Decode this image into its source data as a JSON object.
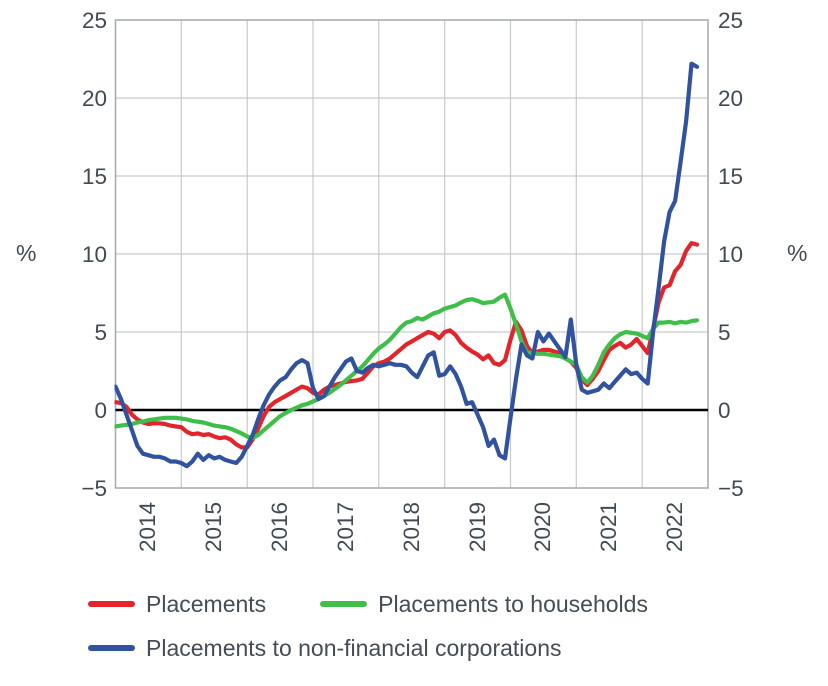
{
  "figure": {
    "unit_label_left": "%",
    "unit_label_right": "%"
  },
  "chart_data": {
    "type": "line",
    "title": "",
    "xlabel": "",
    "ylabel_left": "%",
    "ylabel_right": "%",
    "ylim": [
      -5,
      25
    ],
    "y_ticks": [
      25,
      20,
      15,
      10,
      5,
      0,
      -5
    ],
    "y_tick_labels": [
      "25",
      "20",
      "15",
      "10",
      "5",
      "0",
      "−5"
    ],
    "x_tick_labels": [
      "2014",
      "2015",
      "2016",
      "2017",
      "2018",
      "2019",
      "2020",
      "2021",
      "2022"
    ],
    "x_start": "2014-01",
    "x_end": "2022-11",
    "frequency": "monthly",
    "grid": true,
    "zero_line": true,
    "legend_position": "bottom",
    "axis_text_color": "#414a52",
    "gridline_color": "#c6c9cc",
    "series": [
      {
        "name": "Placements",
        "color": "#e3242b",
        "values": [
          0.5,
          0.45,
          0.2,
          -0.3,
          -0.6,
          -0.8,
          -0.9,
          -0.85,
          -0.85,
          -0.9,
          -1.0,
          -1.05,
          -1.1,
          -1.4,
          -1.55,
          -1.5,
          -1.6,
          -1.55,
          -1.7,
          -1.8,
          -1.75,
          -1.9,
          -2.2,
          -2.4,
          -2.4,
          -1.9,
          -1.2,
          -0.4,
          0.2,
          0.5,
          0.7,
          0.9,
          1.1,
          1.3,
          1.5,
          1.4,
          1.1,
          1.0,
          1.3,
          1.5,
          1.6,
          1.7,
          1.8,
          1.85,
          1.9,
          2.0,
          2.4,
          2.8,
          3.0,
          3.1,
          3.3,
          3.6,
          3.9,
          4.2,
          4.4,
          4.6,
          4.8,
          5.0,
          4.9,
          4.6,
          5.0,
          5.1,
          4.8,
          4.3,
          4.0,
          3.75,
          3.55,
          3.25,
          3.5,
          3.0,
          2.9,
          3.2,
          4.5,
          5.65,
          5.1,
          4.1,
          3.65,
          3.75,
          3.85,
          3.85,
          3.75,
          3.65,
          3.3,
          3.1,
          2.7,
          1.95,
          1.6,
          2.0,
          2.5,
          3.2,
          3.85,
          4.1,
          4.3,
          4.0,
          4.2,
          4.55,
          4.1,
          3.65,
          5.2,
          6.9,
          7.85,
          8.0,
          8.9,
          9.3,
          10.2,
          10.7,
          10.6
        ]
      },
      {
        "name": "Placements to households",
        "color": "#3fbe49",
        "values": [
          -1.05,
          -1.0,
          -0.95,
          -0.9,
          -0.8,
          -0.75,
          -0.65,
          -0.6,
          -0.55,
          -0.5,
          -0.5,
          -0.5,
          -0.55,
          -0.6,
          -0.7,
          -0.75,
          -0.8,
          -0.9,
          -1.0,
          -1.05,
          -1.1,
          -1.2,
          -1.35,
          -1.5,
          -1.7,
          -1.8,
          -1.6,
          -1.3,
          -1.0,
          -0.7,
          -0.4,
          -0.2,
          0.0,
          0.15,
          0.3,
          0.4,
          0.55,
          0.7,
          0.9,
          1.1,
          1.35,
          1.6,
          1.9,
          2.2,
          2.5,
          2.8,
          3.2,
          3.6,
          3.95,
          4.2,
          4.5,
          4.9,
          5.3,
          5.6,
          5.7,
          5.9,
          5.8,
          6.0,
          6.2,
          6.3,
          6.5,
          6.6,
          6.7,
          6.9,
          7.05,
          7.1,
          7.0,
          6.85,
          6.9,
          6.95,
          7.2,
          7.4,
          6.5,
          5.5,
          4.4,
          3.7,
          3.65,
          3.6,
          3.6,
          3.55,
          3.5,
          3.45,
          3.3,
          3.1,
          2.9,
          2.1,
          1.75,
          2.2,
          2.9,
          3.7,
          4.2,
          4.6,
          4.85,
          5.0,
          4.95,
          4.9,
          4.75,
          4.6,
          5.2,
          5.6,
          5.6,
          5.65,
          5.55,
          5.65,
          5.6,
          5.7,
          5.75
        ]
      },
      {
        "name": "Placements to non-financial corporations",
        "color": "#31529f",
        "values": [
          1.5,
          0.7,
          -0.3,
          -1.3,
          -2.3,
          -2.8,
          -2.9,
          -3.0,
          -3.0,
          -3.1,
          -3.3,
          -3.3,
          -3.4,
          -3.6,
          -3.3,
          -2.8,
          -3.2,
          -2.9,
          -3.1,
          -3.0,
          -3.2,
          -3.3,
          -3.4,
          -3.0,
          -2.3,
          -1.6,
          -0.6,
          0.3,
          1.0,
          1.5,
          1.9,
          2.1,
          2.6,
          3.0,
          3.2,
          3.0,
          1.4,
          0.7,
          0.9,
          1.5,
          2.1,
          2.6,
          3.1,
          3.3,
          2.5,
          2.4,
          2.7,
          2.9,
          2.8,
          2.9,
          3.0,
          2.9,
          2.9,
          2.8,
          2.4,
          2.1,
          2.8,
          3.5,
          3.7,
          2.2,
          2.3,
          2.8,
          2.3,
          1.5,
          0.4,
          0.5,
          -0.3,
          -1.1,
          -2.3,
          -1.9,
          -2.9,
          -3.1,
          -0.5,
          2.0,
          4.2,
          3.5,
          3.3,
          5.0,
          4.4,
          4.9,
          4.4,
          3.9,
          3.4,
          5.8,
          2.9,
          1.3,
          1.1,
          1.2,
          1.3,
          1.7,
          1.4,
          1.8,
          2.2,
          2.6,
          2.3,
          2.4,
          2.0,
          1.7,
          5.0,
          7.8,
          10.8,
          12.7,
          13.4,
          15.9,
          18.5,
          22.2,
          22.0
        ]
      }
    ]
  }
}
